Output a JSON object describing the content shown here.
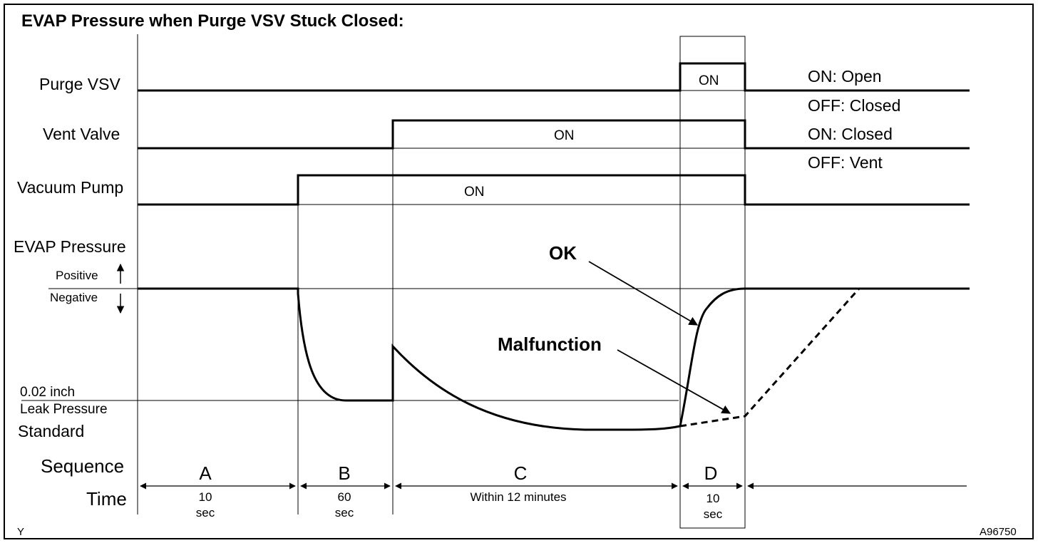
{
  "title": "EVAP Pressure when Purge VSV Stuck Closed:",
  "rows": {
    "purge_vsv": "Purge VSV",
    "vent_valve": "Vent Valve",
    "vacuum_pump": "Vacuum Pump",
    "evap_pressure": "EVAP Pressure",
    "positive": "Positive",
    "negative": "Negative",
    "leak_line1": "0.02 inch",
    "leak_line2": "Leak Pressure",
    "leak_line3": "Standard",
    "sequence": "Sequence",
    "time": "Time"
  },
  "state_legend": {
    "purge_on": "ON: Open",
    "purge_off": "OFF: Closed",
    "vent_on": "ON: Closed",
    "vent_off": "OFF: Vent"
  },
  "on_labels": {
    "purge": "ON",
    "vent": "ON",
    "pump": "ON"
  },
  "annotations": {
    "ok": "OK",
    "malfunction": "Malfunction"
  },
  "sequence": [
    {
      "letter": "A",
      "time_line1": "10",
      "time_line2": "sec"
    },
    {
      "letter": "B",
      "time_line1": "60",
      "time_line2": "sec"
    },
    {
      "letter": "C",
      "time_line1": "Within 12 minutes",
      "time_line2": ""
    },
    {
      "letter": "D",
      "time_line1": "10",
      "time_line2": "sec"
    }
  ],
  "corner_left": "Y",
  "figure_code": "A96750"
}
